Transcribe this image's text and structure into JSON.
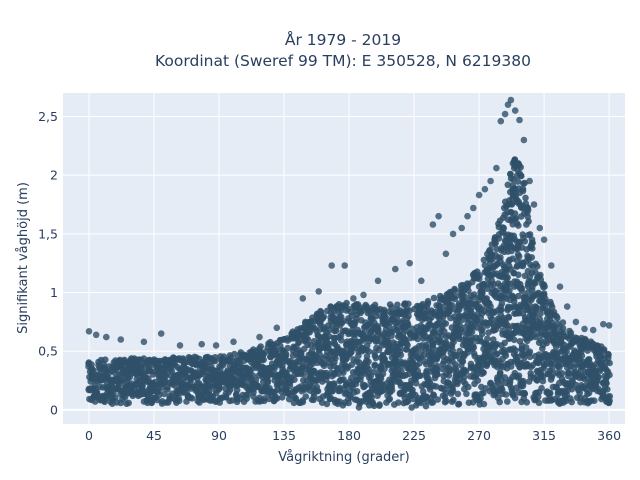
{
  "chart_data": {
    "type": "scatter",
    "title_line1": "År 1979 - 2019",
    "title_line2": "Koordinat (Sweref 99 TM): E 350528, N 6219380",
    "xlabel": "Vågriktning (grader)",
    "ylabel": "Signifikant våghöjd (m)",
    "xlim": [
      -18,
      371
    ],
    "ylim": [
      -0.12,
      2.7
    ],
    "xticks": [
      {
        "value": 0,
        "label": "0"
      },
      {
        "value": 45,
        "label": "45"
      },
      {
        "value": 90,
        "label": "90"
      },
      {
        "value": 135,
        "label": "135"
      },
      {
        "value": 180,
        "label": "180"
      },
      {
        "value": 225,
        "label": "225"
      },
      {
        "value": 270,
        "label": "270"
      },
      {
        "value": 315,
        "label": "315"
      },
      {
        "value": 360,
        "label": "360"
      }
    ],
    "yticks": [
      {
        "value": 0,
        "label": "0"
      },
      {
        "value": 0.5,
        "label": "0,5"
      },
      {
        "value": 1,
        "label": "1"
      },
      {
        "value": 1.5,
        "label": "1,5"
      },
      {
        "value": 2,
        "label": "2"
      },
      {
        "value": 2.5,
        "label": "2,5"
      }
    ],
    "grid": true,
    "marker_color": "#2f5069",
    "plot_background": "#e5ecf6",
    "dense_envelope": {
      "x": [
        0,
        20,
        45,
        90,
        110,
        135,
        150,
        165,
        180,
        200,
        225,
        240,
        255,
        270,
        280,
        288,
        292,
        296,
        300,
        304,
        310,
        320,
        330,
        345,
        360
      ],
      "ymax": [
        0.42,
        0.44,
        0.44,
        0.46,
        0.52,
        0.62,
        0.75,
        0.88,
        0.92,
        0.9,
        0.92,
        0.96,
        1.05,
        1.2,
        1.45,
        1.8,
        2.05,
        2.2,
        2.05,
        1.7,
        1.25,
        0.9,
        0.7,
        0.6,
        0.5
      ],
      "ymin": [
        0.06,
        0.05,
        0.05,
        0.06,
        0.07,
        0.05,
        0.05,
        0.03,
        0.02,
        0.02,
        0.02,
        0.03,
        0.04,
        0.04,
        0.05,
        0.06,
        0.06,
        0.06,
        0.06,
        0.06,
        0.05,
        0.05,
        0.05,
        0.05,
        0.05
      ]
    },
    "outliers": [
      {
        "x": 0,
        "y": 0.67
      },
      {
        "x": 5,
        "y": 0.64
      },
      {
        "x": 12,
        "y": 0.62
      },
      {
        "x": 22,
        "y": 0.6
      },
      {
        "x": 38,
        "y": 0.58
      },
      {
        "x": 50,
        "y": 0.65
      },
      {
        "x": 63,
        "y": 0.55
      },
      {
        "x": 78,
        "y": 0.56
      },
      {
        "x": 88,
        "y": 0.55
      },
      {
        "x": 100,
        "y": 0.58
      },
      {
        "x": 118,
        "y": 0.62
      },
      {
        "x": 130,
        "y": 0.7
      },
      {
        "x": 148,
        "y": 0.95
      },
      {
        "x": 159,
        "y": 1.01
      },
      {
        "x": 168,
        "y": 1.23
      },
      {
        "x": 177,
        "y": 1.23
      },
      {
        "x": 183,
        "y": 0.95
      },
      {
        "x": 190,
        "y": 0.98
      },
      {
        "x": 200,
        "y": 1.1
      },
      {
        "x": 212,
        "y": 1.2
      },
      {
        "x": 222,
        "y": 1.25
      },
      {
        "x": 230,
        "y": 1.1
      },
      {
        "x": 238,
        "y": 1.58
      },
      {
        "x": 242,
        "y": 1.65
      },
      {
        "x": 247,
        "y": 1.33
      },
      {
        "x": 252,
        "y": 1.5
      },
      {
        "x": 258,
        "y": 1.55
      },
      {
        "x": 262,
        "y": 1.65
      },
      {
        "x": 266,
        "y": 1.72
      },
      {
        "x": 270,
        "y": 1.83
      },
      {
        "x": 274,
        "y": 1.88
      },
      {
        "x": 278,
        "y": 1.95
      },
      {
        "x": 282,
        "y": 2.06
      },
      {
        "x": 285,
        "y": 2.46
      },
      {
        "x": 288,
        "y": 2.52
      },
      {
        "x": 290,
        "y": 2.6
      },
      {
        "x": 292,
        "y": 2.64
      },
      {
        "x": 295,
        "y": 2.55
      },
      {
        "x": 298,
        "y": 2.47
      },
      {
        "x": 301,
        "y": 2.3
      },
      {
        "x": 305,
        "y": 1.95
      },
      {
        "x": 308,
        "y": 1.75
      },
      {
        "x": 312,
        "y": 1.55
      },
      {
        "x": 315,
        "y": 1.45
      },
      {
        "x": 320,
        "y": 1.23
      },
      {
        "x": 326,
        "y": 1.05
      },
      {
        "x": 331,
        "y": 0.88
      },
      {
        "x": 337,
        "y": 0.75
      },
      {
        "x": 343,
        "y": 0.69
      },
      {
        "x": 349,
        "y": 0.68
      },
      {
        "x": 356,
        "y": 0.73
      },
      {
        "x": 360,
        "y": 0.72
      }
    ]
  }
}
